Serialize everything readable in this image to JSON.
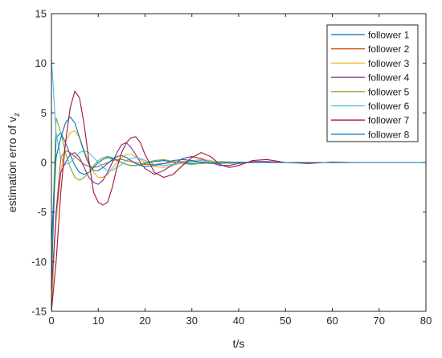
{
  "chart_data": {
    "type": "line",
    "xlabel": "t/s",
    "ylabel": "estimation erro of v",
    "ylabel_subscript": "z",
    "xlim": [
      0,
      80
    ],
    "ylim": [
      -15,
      15
    ],
    "xticks": [
      0,
      10,
      20,
      30,
      40,
      50,
      60,
      70,
      80
    ],
    "yticks": [
      -15,
      -10,
      -5,
      0,
      5,
      10,
      15
    ],
    "grid": false,
    "legend_position": "top-right",
    "x": [
      0,
      1,
      2,
      3,
      4,
      5,
      6,
      7,
      8,
      9,
      10,
      11,
      12,
      13,
      14,
      15,
      16,
      17,
      18,
      19,
      20,
      22,
      24,
      26,
      28,
      30,
      32,
      34,
      36,
      38,
      40,
      43,
      46,
      50,
      55,
      60,
      65,
      70,
      75,
      80
    ],
    "series": [
      {
        "name": "follower 1",
        "color": "#0072BD",
        "values": [
          -12,
          2.5,
          3.0,
          2.0,
          0.8,
          -0.3,
          -1.0,
          -1.2,
          -1.0,
          -0.5,
          0.0,
          0.3,
          0.5,
          0.4,
          0.2,
          0.0,
          -0.2,
          -0.3,
          -0.3,
          -0.2,
          -0.1,
          0.1,
          0.2,
          0.1,
          0.0,
          -0.1,
          -0.1,
          0.0,
          0.05,
          0.05,
          0.0,
          0.0,
          0.0,
          0.0,
          0,
          0,
          0,
          0,
          0,
          0
        ]
      },
      {
        "name": "follower 2",
        "color": "#D95319",
        "values": [
          -15,
          -5,
          0.5,
          1.2,
          1.0,
          0.6,
          0.2,
          -0.2,
          -0.4,
          -0.5,
          -0.4,
          -0.2,
          0.0,
          0.2,
          0.3,
          0.3,
          0.2,
          0.1,
          0.0,
          -0.1,
          -0.2,
          -0.2,
          -0.1,
          0.0,
          0.1,
          0.1,
          0.05,
          0.0,
          -0.05,
          -0.05,
          0.0,
          0.0,
          0.0,
          0.0,
          0,
          0,
          0,
          0,
          0,
          0
        ]
      },
      {
        "name": "follower 3",
        "color": "#EDB120",
        "values": [
          -14,
          -6,
          -1,
          2.0,
          3.0,
          3.2,
          2.5,
          1.2,
          0.0,
          -1.0,
          -1.5,
          -1.5,
          -1.2,
          -0.6,
          0.0,
          0.5,
          0.8,
          0.8,
          0.6,
          0.3,
          0.0,
          -0.4,
          -0.5,
          -0.3,
          0.0,
          0.2,
          0.3,
          0.2,
          0.0,
          -0.1,
          -0.1,
          0.0,
          0.05,
          0.0,
          0,
          0,
          0,
          0,
          0,
          0
        ]
      },
      {
        "name": "follower 4",
        "color": "#7E2F8E",
        "values": [
          -13,
          -5,
          -1,
          0.0,
          0.8,
          1.0,
          0.5,
          -0.5,
          -1.5,
          -2.0,
          -2.2,
          -1.8,
          -1.0,
          0.0,
          1.0,
          1.8,
          2.0,
          1.5,
          0.8,
          0.0,
          -0.6,
          -1.2,
          -0.8,
          -0.2,
          0.4,
          0.6,
          0.4,
          0.0,
          -0.3,
          -0.3,
          -0.1,
          0.1,
          0.1,
          0.0,
          0,
          0,
          0,
          0,
          0,
          0
        ]
      },
      {
        "name": "follower 5",
        "color": "#77AC30",
        "values": [
          -10,
          4.5,
          3.0,
          1.0,
          -0.5,
          -1.5,
          -1.8,
          -1.5,
          -1.0,
          -0.3,
          0.2,
          0.5,
          0.6,
          0.5,
          0.3,
          0.0,
          -0.2,
          -0.3,
          -0.3,
          -0.2,
          0.0,
          0.2,
          0.3,
          0.1,
          -0.1,
          -0.2,
          -0.1,
          0.0,
          0.1,
          0.05,
          0.0,
          0.0,
          0.0,
          0.0,
          0,
          0,
          0,
          0,
          0,
          0
        ]
      },
      {
        "name": "follower 6",
        "color": "#4DBEEE",
        "values": [
          10.5,
          3.0,
          0.5,
          -0.2,
          0.0,
          0.5,
          1.0,
          1.2,
          1.0,
          0.5,
          0.0,
          -0.5,
          -0.8,
          -0.8,
          -0.5,
          -0.2,
          0.2,
          0.4,
          0.5,
          0.4,
          0.2,
          -0.2,
          -0.3,
          -0.2,
          0.0,
          0.1,
          0.2,
          0.1,
          0.0,
          -0.05,
          0.0,
          0.0,
          0.0,
          0.0,
          0,
          0,
          0,
          0,
          0,
          0
        ]
      },
      {
        "name": "follower 7",
        "color": "#A2142F",
        "values": [
          -15,
          -10,
          -3,
          2.0,
          5.5,
          7.2,
          6.5,
          3.8,
          0.2,
          -3.0,
          -4.0,
          -4.3,
          -4.0,
          -2.5,
          -0.5,
          1.0,
          2.0,
          2.5,
          2.6,
          2.0,
          0.8,
          -1.0,
          -1.5,
          -1.2,
          -0.3,
          0.5,
          1.0,
          0.6,
          -0.2,
          -0.5,
          -0.3,
          0.2,
          0.3,
          0.0,
          -0.1,
          0.05,
          0,
          0,
          0,
          0
        ]
      },
      {
        "name": "follower 8",
        "color": "#0072BD",
        "values": [
          -8,
          0.5,
          2.5,
          4.0,
          4.6,
          4.0,
          2.5,
          1.0,
          -0.2,
          -0.8,
          -0.8,
          -0.5,
          -0.1,
          0.3,
          0.6,
          0.7,
          0.5,
          0.2,
          -0.1,
          -0.3,
          -0.4,
          -0.3,
          -0.1,
          0.2,
          0.3,
          0.2,
          0.0,
          -0.1,
          -0.1,
          0.0,
          0.05,
          0.0,
          0.0,
          0.0,
          0,
          0,
          0,
          0,
          0,
          0
        ]
      }
    ]
  }
}
